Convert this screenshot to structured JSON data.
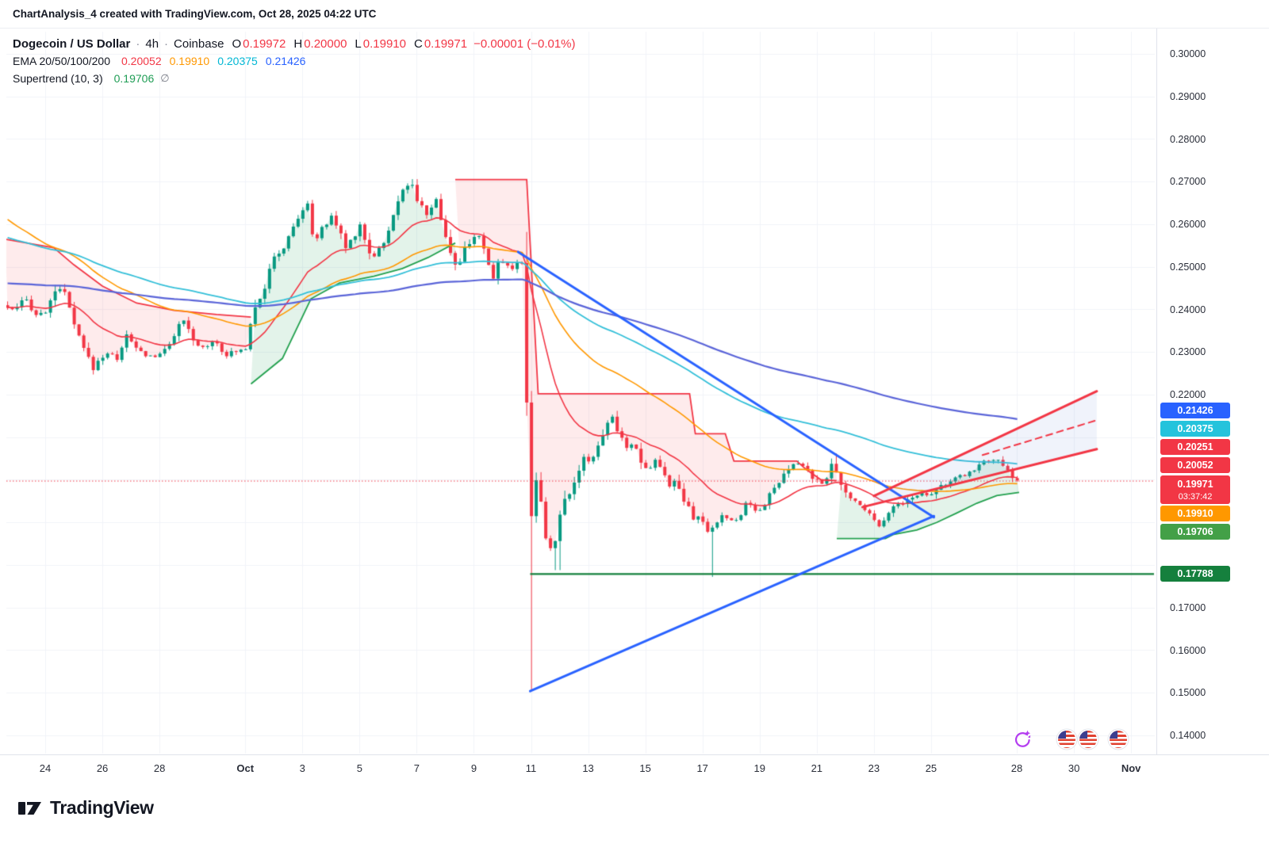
{
  "header": {
    "title": "ChartAnalysis_4 created with TradingView.com, Oct 28, 2025 04:22 UTC"
  },
  "legend": {
    "symbol": "Dogecoin / US Dollar",
    "dot": "·",
    "interval": "4h",
    "exchange": "Coinbase",
    "ohlc": {
      "o_label": "O",
      "o": "0.19972",
      "h_label": "H",
      "h": "0.20000",
      "l_label": "L",
      "l": "0.19910",
      "c_label": "C",
      "c": "0.19971",
      "change": "−0.00001 (−0.01%)"
    },
    "ema": {
      "label": "EMA 20/50/100/200",
      "v20": "0.20052",
      "v50": "0.19910",
      "v100": "0.20375",
      "v200": "0.21426"
    },
    "supertrend": {
      "label": "Supertrend (10, 3)",
      "value": "0.19706",
      "icon": "∅"
    }
  },
  "y_axis": {
    "ticks": [
      {
        "label": "0.30000",
        "price": 0.3
      },
      {
        "label": "0.29000",
        "price": 0.29
      },
      {
        "label": "0.28000",
        "price": 0.28
      },
      {
        "label": "0.27000",
        "price": 0.27
      },
      {
        "label": "0.26000",
        "price": 0.26
      },
      {
        "label": "0.25000",
        "price": 0.25
      },
      {
        "label": "0.24000",
        "price": 0.24
      },
      {
        "label": "0.23000",
        "price": 0.23
      },
      {
        "label": "0.22000",
        "price": 0.22
      },
      {
        "label": "0.17000",
        "price": 0.17
      },
      {
        "label": "0.16000",
        "price": 0.16
      },
      {
        "label": "0.15000",
        "price": 0.15
      },
      {
        "label": "0.14000",
        "price": 0.14
      }
    ],
    "badges": [
      {
        "name": "ema200-price-badge",
        "label": "0.21426",
        "price": 0.21426,
        "bg": "#2962ff",
        "fg": "#ffffff"
      },
      {
        "name": "ema100-price-badge",
        "label": "0.20375",
        "price": 0.20375,
        "bg": "#24c3dc",
        "fg": "#ffffff"
      },
      {
        "name": "channel-price-badge",
        "label": "0.20251",
        "price": 0.20251,
        "bg": "#f23645",
        "fg": "#ffffff"
      },
      {
        "name": "ema20-price-badge",
        "label": "0.20052",
        "price": 0.20052,
        "bg": "#f23645",
        "fg": "#ffffff"
      },
      {
        "name": "current-price-badge",
        "label": "0.19971",
        "sub": "03:37:42",
        "price": 0.19971,
        "bg": "#f23645",
        "fg": "#ffffff"
      },
      {
        "name": "ema50-price-badge",
        "label": "0.19910",
        "price": 0.1991,
        "bg": "#ff9800",
        "fg": "#ffffff"
      },
      {
        "name": "supertrend-price-badge",
        "label": "0.19706",
        "price": 0.19706,
        "bg": "#43a047",
        "fg": "#ffffff"
      },
      {
        "name": "support-price-badge",
        "label": "0.17788",
        "price": 0.17788,
        "bg": "#15803d",
        "fg": "#ffffff"
      }
    ]
  },
  "x_axis": {
    "ticks": [
      {
        "label": "24",
        "t": 0
      },
      {
        "label": "26",
        "t": 2
      },
      {
        "label": "28",
        "t": 4
      },
      {
        "label": "Oct",
        "t": 7,
        "bold": true
      },
      {
        "label": "3",
        "t": 9
      },
      {
        "label": "5",
        "t": 11
      },
      {
        "label": "7",
        "t": 13
      },
      {
        "label": "9",
        "t": 15
      },
      {
        "label": "11",
        "t": 17
      },
      {
        "label": "13",
        "t": 19
      },
      {
        "label": "15",
        "t": 21
      },
      {
        "label": "17",
        "t": 23
      },
      {
        "label": "19",
        "t": 25
      },
      {
        "label": "21",
        "t": 27
      },
      {
        "label": "23",
        "t": 29
      },
      {
        "label": "25",
        "t": 31
      },
      {
        "label": "28",
        "t": 34
      },
      {
        "label": "30",
        "t": 36
      },
      {
        "label": "Nov",
        "t": 38,
        "bold": true
      }
    ]
  },
  "markers": {
    "sparkle": {
      "t": 34.2
    },
    "flags": [
      {
        "t": 35.75
      },
      {
        "t": 36.5
      },
      {
        "t": 37.55
      }
    ]
  },
  "footer": {
    "brand": "TradingView"
  },
  "chart_data": {
    "type": "candlestick",
    "symbol": "Dogecoin / US Dollar",
    "exchange": "Coinbase",
    "timeframe": "4h",
    "y_range": [
      0.14,
      0.3
    ],
    "x_unit": "days since Sep 24",
    "x_start": -1.4,
    "last_candle_t": 34.08,
    "candles_per_day": 6,
    "current_price": 0.19971,
    "up_color": "#089981",
    "down_color": "#f23645",
    "price_path_anchors": [
      [
        -1.4,
        0.241
      ],
      [
        -1.0,
        0.2395
      ],
      [
        -0.6,
        0.2425
      ],
      [
        -0.2,
        0.2385
      ],
      [
        0.2,
        0.24
      ],
      [
        0.5,
        0.2462
      ],
      [
        0.8,
        0.243
      ],
      [
        1.2,
        0.234
      ],
      [
        1.75,
        0.2262
      ],
      [
        2.2,
        0.23
      ],
      [
        2.6,
        0.2285
      ],
      [
        2.9,
        0.234
      ],
      [
        3.3,
        0.2305
      ],
      [
        3.7,
        0.229
      ],
      [
        4.1,
        0.2292
      ],
      [
        4.5,
        0.233
      ],
      [
        4.9,
        0.2375
      ],
      [
        5.3,
        0.232
      ],
      [
        5.6,
        0.231
      ],
      [
        6.0,
        0.233
      ],
      [
        6.4,
        0.2295
      ],
      [
        6.75,
        0.23
      ],
      [
        7.1,
        0.231
      ],
      [
        7.35,
        0.2405
      ],
      [
        7.7,
        0.244
      ],
      [
        8.1,
        0.252
      ],
      [
        8.5,
        0.255
      ],
      [
        8.8,
        0.26
      ],
      [
        9.05,
        0.263
      ],
      [
        9.3,
        0.2645
      ],
      [
        9.5,
        0.256
      ],
      [
        9.8,
        0.259
      ],
      [
        10.1,
        0.262
      ],
      [
        10.4,
        0.258
      ],
      [
        10.6,
        0.2545
      ],
      [
        10.9,
        0.2575
      ],
      [
        11.1,
        0.26
      ],
      [
        11.35,
        0.255
      ],
      [
        11.5,
        0.252
      ],
      [
        11.8,
        0.2545
      ],
      [
        12.1,
        0.258
      ],
      [
        12.35,
        0.264
      ],
      [
        12.5,
        0.268
      ],
      [
        12.85,
        0.27
      ],
      [
        13.1,
        0.266
      ],
      [
        13.4,
        0.262
      ],
      [
        13.75,
        0.266
      ],
      [
        14.0,
        0.26
      ],
      [
        14.2,
        0.255
      ],
      [
        14.5,
        0.249
      ],
      [
        14.85,
        0.2555
      ],
      [
        15.2,
        0.258
      ],
      [
        15.45,
        0.253
      ],
      [
        15.6,
        0.25
      ],
      [
        15.8,
        0.247
      ],
      [
        16.0,
        0.2525
      ],
      [
        16.2,
        0.2505
      ],
      [
        16.4,
        0.2495
      ],
      [
        16.7,
        0.252
      ],
      [
        16.88,
        0.248
      ],
      [
        17.0,
        0.19
      ],
      [
        17.15,
        0.198
      ],
      [
        17.3,
        0.2
      ],
      [
        17.45,
        0.194
      ],
      [
        17.6,
        0.187
      ],
      [
        17.85,
        0.1835
      ],
      [
        18.0,
        0.187
      ],
      [
        18.2,
        0.195
      ],
      [
        18.45,
        0.1975
      ],
      [
        18.6,
        0.2
      ],
      [
        18.8,
        0.203
      ],
      [
        19.0,
        0.2055
      ],
      [
        19.2,
        0.204
      ],
      [
        19.4,
        0.208
      ],
      [
        19.6,
        0.211
      ],
      [
        19.75,
        0.2135
      ],
      [
        19.9,
        0.215
      ],
      [
        20.1,
        0.211
      ],
      [
        20.3,
        0.209
      ],
      [
        20.5,
        0.2075
      ],
      [
        20.7,
        0.209
      ],
      [
        21.0,
        0.2035
      ],
      [
        21.2,
        0.202
      ],
      [
        21.4,
        0.205
      ],
      [
        21.6,
        0.203
      ],
      [
        21.9,
        0.1985
      ],
      [
        22.1,
        0.2
      ],
      [
        22.35,
        0.196
      ],
      [
        22.6,
        0.193
      ],
      [
        22.8,
        0.19
      ],
      [
        23.0,
        0.192
      ],
      [
        23.3,
        0.187
      ],
      [
        23.5,
        0.189
      ],
      [
        23.75,
        0.192
      ],
      [
        24.0,
        0.1905
      ],
      [
        24.2,
        0.19
      ],
      [
        24.45,
        0.1925
      ],
      [
        24.65,
        0.195
      ],
      [
        24.85,
        0.1935
      ],
      [
        25.1,
        0.193
      ],
      [
        25.35,
        0.1955
      ],
      [
        25.6,
        0.198
      ],
      [
        25.85,
        0.2
      ],
      [
        26.05,
        0.202
      ],
      [
        26.3,
        0.2035
      ],
      [
        26.5,
        0.204
      ],
      [
        26.7,
        0.2025
      ],
      [
        26.9,
        0.201
      ],
      [
        27.1,
        0.1995
      ],
      [
        27.3,
        0.199
      ],
      [
        27.5,
        0.202
      ],
      [
        27.6,
        0.2045
      ],
      [
        27.75,
        0.201
      ],
      [
        28.0,
        0.1975
      ],
      [
        28.2,
        0.196
      ],
      [
        28.4,
        0.195
      ],
      [
        28.6,
        0.1945
      ],
      [
        28.8,
        0.193
      ],
      [
        29.0,
        0.1915
      ],
      [
        29.25,
        0.1895
      ],
      [
        29.5,
        0.1915
      ],
      [
        29.75,
        0.1935
      ],
      [
        30.0,
        0.1945
      ],
      [
        30.2,
        0.195
      ],
      [
        30.5,
        0.196
      ],
      [
        30.8,
        0.197
      ],
      [
        31.05,
        0.1965
      ],
      [
        31.3,
        0.1985
      ],
      [
        31.6,
        0.199
      ],
      [
        31.9,
        0.2
      ],
      [
        32.15,
        0.2008
      ],
      [
        32.4,
        0.2015
      ],
      [
        32.65,
        0.203
      ],
      [
        32.9,
        0.204
      ],
      [
        33.1,
        0.2048
      ],
      [
        33.3,
        0.205
      ],
      [
        33.45,
        0.204
      ],
      [
        33.6,
        0.203
      ],
      [
        33.75,
        0.202
      ],
      [
        33.9,
        0.201
      ],
      [
        34.08,
        0.19971
      ]
    ],
    "wick_overrides": [
      {
        "t": 17.0,
        "low": 0.1504
      },
      {
        "t": 17.85,
        "low": 0.1788
      },
      {
        "t": 23.3,
        "low": 0.1772
      },
      {
        "t": 19.9,
        "high": 0.2162
      },
      {
        "t": 12.85,
        "high": 0.2706
      },
      {
        "t": 27.6,
        "high": 0.2062
      }
    ],
    "ema": {
      "periods": [
        20,
        50,
        100,
        200
      ],
      "initial": [
        0.2405,
        0.262,
        0.2572,
        0.2462
      ],
      "current": [
        0.20052,
        0.1991,
        0.20375,
        0.21426
      ],
      "colors": [
        "#f23645",
        "#ff9800",
        "#33bfd8",
        "#5a64d8"
      ],
      "widths": [
        1.6,
        1.6,
        1.8,
        2.2
      ]
    },
    "supertrend": {
      "params": "(10, 3)",
      "current": 0.19706,
      "line_down": "#f23645",
      "line_up": "#22a04e",
      "fill_down": "rgba(242,54,69,0.10)",
      "fill_up": "rgba(39,163,90,0.13)",
      "segments": [
        {
          "dir": "down",
          "pts": [
            [
              -1.4,
              0.2565
            ],
            [
              0.3,
              0.2545
            ],
            [
              1.0,
              0.2505
            ],
            [
              2.0,
              0.2455
            ],
            [
              3.2,
              0.2415
            ],
            [
              4.5,
              0.2398
            ],
            [
              6.0,
              0.2388
            ],
            [
              7.2,
              0.2382
            ]
          ]
        },
        {
          "dir": "up",
          "pts": [
            [
              7.2,
              0.2225
            ],
            [
              8.3,
              0.2285
            ],
            [
              9.3,
              0.2425
            ],
            [
              10.3,
              0.2462
            ],
            [
              11.5,
              0.2478
            ],
            [
              12.5,
              0.2496
            ],
            [
              13.4,
              0.2522
            ],
            [
              14.35,
              0.2556
            ]
          ]
        },
        {
          "dir": "down",
          "pts": [
            [
              14.35,
              0.2705
            ],
            [
              16.85,
              0.2705
            ],
            [
              17.25,
              0.2202
            ],
            [
              22.55,
              0.2202
            ],
            [
              22.75,
              0.2108
            ],
            [
              23.8,
              0.2108
            ],
            [
              24.1,
              0.2044
            ],
            [
              26.3,
              0.2044
            ],
            [
              26.6,
              0.2026
            ],
            [
              27.15,
              0.2
            ],
            [
              27.7,
              0.1998
            ]
          ]
        },
        {
          "dir": "up",
          "pts": [
            [
              27.7,
              0.1862
            ],
            [
              29.4,
              0.1862
            ],
            [
              29.7,
              0.1872
            ],
            [
              30.5,
              0.1882
            ],
            [
              31.2,
              0.19
            ],
            [
              31.9,
              0.1922
            ],
            [
              32.6,
              0.1945
            ],
            [
              33.3,
              0.1963
            ],
            [
              34.08,
              0.19706
            ]
          ]
        }
      ]
    },
    "trendlines": [
      {
        "name": "descending-trendline",
        "from": [
          16.55,
          0.2535
        ],
        "to": [
          31.1,
          0.1912
        ],
        "color": "#2962ff",
        "width": 3
      },
      {
        "name": "ascending-trendline",
        "from": [
          16.97,
          0.1504
        ],
        "to": [
          31.1,
          0.1915
        ],
        "color": "#2962ff",
        "width": 3
      }
    ],
    "channel": {
      "color": "#f23645",
      "width": 3,
      "fill": "rgba(110,140,220,0.10)",
      "upper": {
        "from": [
          29.0,
          0.1962
        ],
        "to": [
          36.8,
          0.2208
        ]
      },
      "lower": {
        "from": [
          28.6,
          0.1936
        ],
        "to": [
          36.8,
          0.2072
        ]
      },
      "mid": {
        "from": [
          32.8,
          0.2058
        ],
        "to": [
          36.8,
          0.214
        ],
        "dash": [
          8,
          6
        ],
        "width": 2
      }
    },
    "horizontal_lines": [
      {
        "name": "support-line",
        "price": 0.17788,
        "color": "#15803d",
        "width": 2.4,
        "from_t": 16.97,
        "to_t": 38.8,
        "style": "solid"
      },
      {
        "name": "current-price-line",
        "price": 0.19971,
        "color": "#f23645",
        "width": 1,
        "from_t": -1.4,
        "to_t": 38.8,
        "style": "dotted"
      }
    ]
  }
}
